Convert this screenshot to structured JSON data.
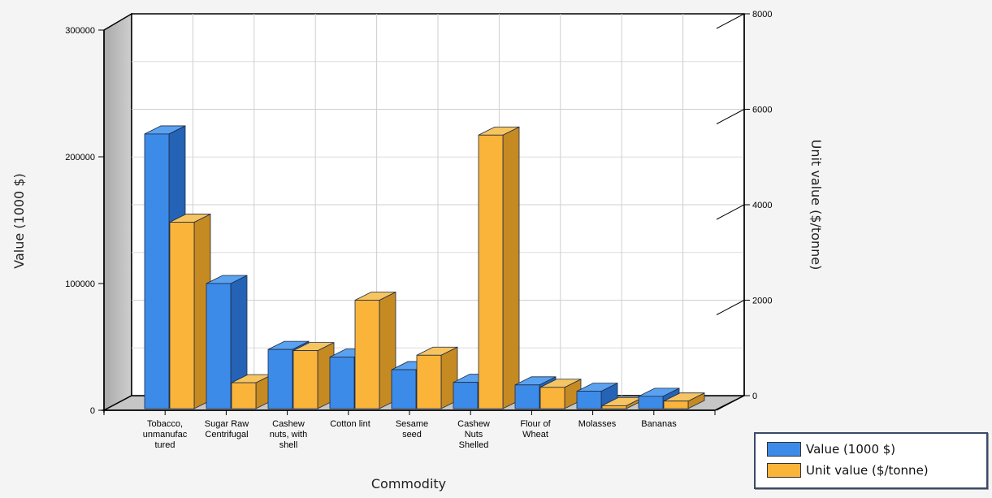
{
  "chart_data": {
    "type": "bar",
    "style": "3d",
    "categories": [
      "Tobacco, unmanufactured",
      "Sugar Raw Centrifugal",
      "Cashew nuts, with shell",
      "Cotton lint",
      "Sesame seed",
      "Cashew Nuts Shelled",
      "Flour of Wheat",
      "Molasses",
      "Bananas"
    ],
    "category_label_lines": [
      [
        "Tobacco,",
        "unmanufac",
        "tured"
      ],
      [
        "Sugar Raw",
        "Centrifugal"
      ],
      [
        "Cashew",
        "nuts, with",
        "shell"
      ],
      [
        "Cotton lint"
      ],
      [
        "Sesame",
        "seed"
      ],
      [
        "Cashew",
        "Nuts",
        "Shelled"
      ],
      [
        "Flour of",
        "Wheat"
      ],
      [
        "Molasses"
      ],
      [
        "Bananas"
      ]
    ],
    "series": [
      {
        "name": "Value (1000 $)",
        "axis": "left",
        "color": "#3d8be8",
        "values": [
          218000,
          100000,
          48000,
          42000,
          32000,
          22000,
          20000,
          15000,
          11000
        ]
      },
      {
        "name": "Unit value ($/tonne)",
        "axis": "right",
        "color": "#fbb43a",
        "values": [
          4100,
          600,
          1300,
          2400,
          1200,
          6000,
          500,
          100,
          200
        ]
      }
    ],
    "xlabel": "Commodity",
    "ylabel": "Value (1000 $)",
    "y2label": "Unit value ($/tonne)",
    "ylim": [
      0,
      300000
    ],
    "y2lim": [
      0,
      8000
    ],
    "yticks": [
      "300000",
      "200000",
      "100000",
      "0"
    ],
    "y2ticks": [
      "8000",
      "6000",
      "4000",
      "2000",
      "0"
    ],
    "grid": true,
    "legend_position": "bottom-right"
  }
}
